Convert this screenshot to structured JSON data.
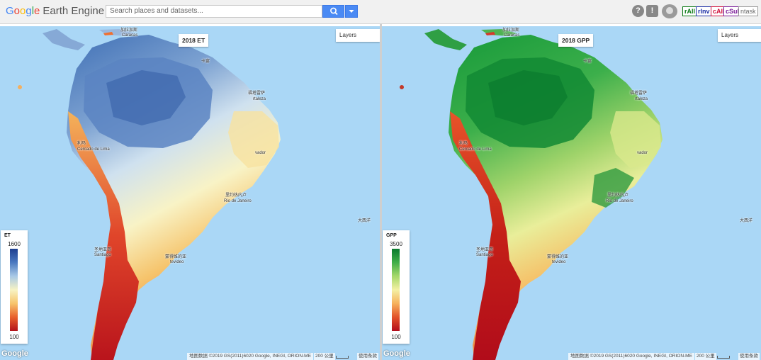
{
  "app": {
    "logo_letters": [
      "G",
      "o",
      "o",
      "g",
      "l",
      "e"
    ],
    "logo_rest": "Earth Engine"
  },
  "search": {
    "placeholder": "Search places and datasets..."
  },
  "toolbar": {
    "help_icon": "?",
    "feedback_icon": "!",
    "tags": [
      "rAll",
      "rInv",
      "cAll",
      "cSub",
      "ntask"
    ]
  },
  "maps": [
    {
      "title": "2018 ET",
      "layers_label": "Layers",
      "legend": {
        "title": "ET",
        "max": "1600",
        "min": "100",
        "colors": [
          "#1d3e8f",
          "#4a78c0",
          "#a9c9e6",
          "#f7f3c4",
          "#f7c46b",
          "#e8602c",
          "#b3131b"
        ]
      },
      "google_mark": "Google",
      "attribution": "地图数据 ©2019 GS(2011)6020 Google, INEGI, ORION-ME",
      "scale": "200 公里",
      "terms": "使用条款"
    },
    {
      "title": "2018 GPP",
      "layers_label": "Layers",
      "legend": {
        "title": "GPP",
        "max": "3500",
        "min": "100",
        "colors": [
          "#0a7a2e",
          "#3fae49",
          "#a5d86a",
          "#f4f0a4",
          "#f6b15c",
          "#e2522a",
          "#b30d1c"
        ]
      },
      "google_mark": "Google",
      "attribution": "地图数据 ©2019 GS(2011)6020 Google, INEGI, ORION-ME",
      "scale": "200 公里",
      "terms": "使用条款"
    }
  ],
  "place_labels": {
    "caracas_cn": "加拉加斯",
    "caracas": "Caracas",
    "cayenne_cn": "卡宴",
    "fortaleza_cn": "福塔雷萨",
    "fortaleza": "rtaleza",
    "lima_cn": "利马",
    "lima": "Cercado de Lima",
    "salvador": "vador",
    "rio_cn": "里约热内卢",
    "rio": "Rio de Janeiro",
    "ocean_cn": "大西洋",
    "santiago_cn": "圣地亚哥",
    "santiago": "Santiago",
    "montevideo_cn": "蒙得维的亚",
    "montevideo": "tevideo"
  }
}
